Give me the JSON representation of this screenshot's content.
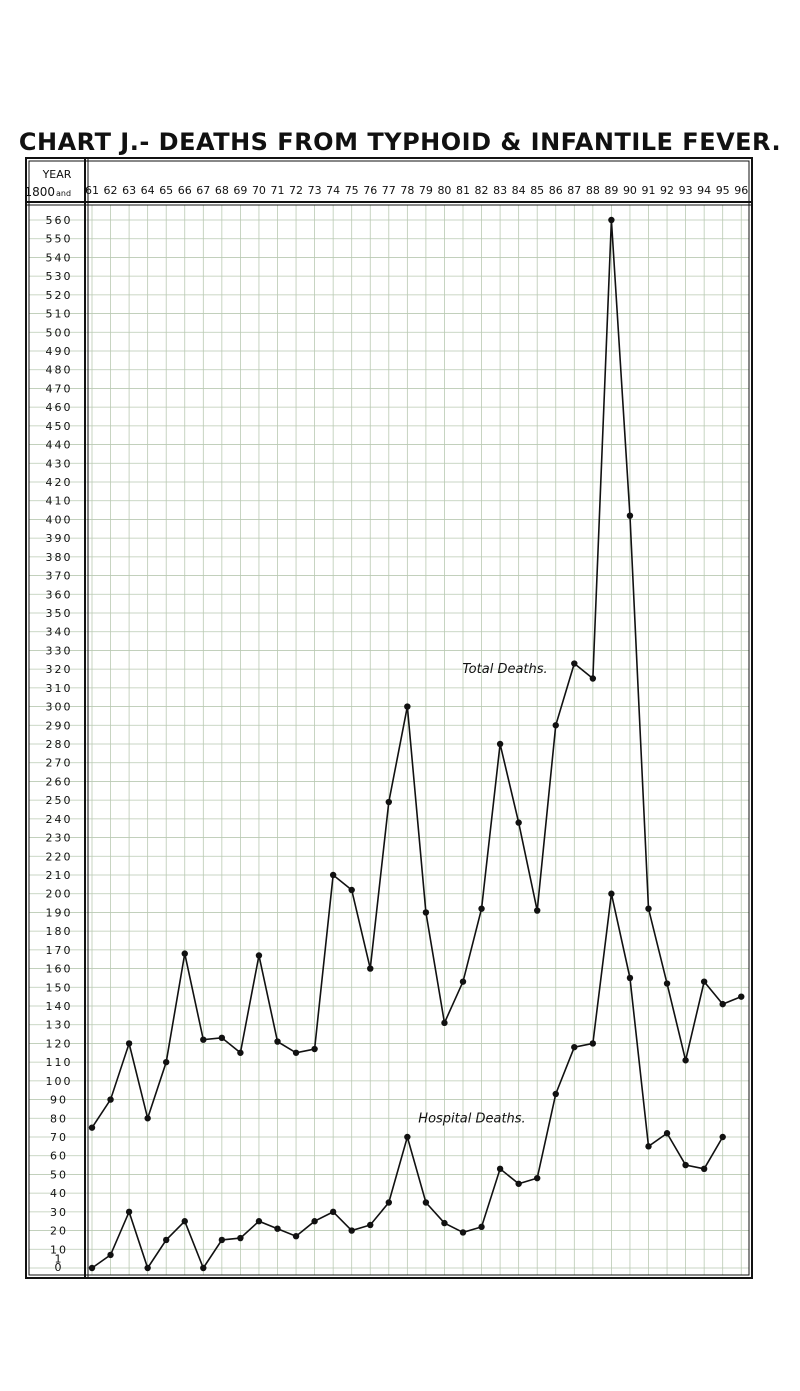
{
  "title": "CHART J.- DEATHS FROM TYPHOID & INFANTILE FEVER.",
  "corner": {
    "line1": "YEAR",
    "line2": "1800",
    "line2_suffix": "and"
  },
  "chart_data": {
    "type": "line",
    "title": "CHART J.- DEATHS FROM TYPHOID & INFANTILE FEVER.",
    "x_labels": [
      "61",
      "62",
      "63",
      "64",
      "65",
      "66",
      "67",
      "68",
      "69",
      "70",
      "71",
      "72",
      "73",
      "74",
      "75",
      "76",
      "77",
      "78",
      "79",
      "80",
      "81",
      "82",
      "83",
      "84",
      "85",
      "86",
      "87",
      "88",
      "89",
      "90",
      "91",
      "92",
      "93",
      "94",
      "95",
      "96"
    ],
    "x": [
      1861,
      1862,
      1863,
      1864,
      1865,
      1866,
      1867,
      1868,
      1869,
      1870,
      1871,
      1872,
      1873,
      1874,
      1875,
      1876,
      1877,
      1878,
      1879,
      1880,
      1881,
      1882,
      1883,
      1884,
      1885,
      1886,
      1887,
      1888,
      1889,
      1890,
      1891,
      1892,
      1893,
      1894,
      1895,
      1896
    ],
    "y_labels": [
      "560",
      "550",
      "540",
      "530",
      "520",
      "510",
      "500",
      "490",
      "480",
      "470",
      "460",
      "450",
      "440",
      "430",
      "420",
      "410",
      "400",
      "390",
      "380",
      "370",
      "360",
      "350",
      "340",
      "330",
      "320",
      "310",
      "300",
      "290",
      "280",
      "270",
      "260",
      "250",
      "240",
      "230",
      "220",
      "210",
      "200",
      "190",
      "180",
      "170",
      "160",
      "150",
      "140",
      "130",
      "120",
      "110",
      "100",
      "90",
      "80",
      "70",
      "60",
      "50",
      "40",
      "30",
      "20",
      "10",
      "1",
      "0"
    ],
    "ylim": [
      0,
      560
    ],
    "grid": true,
    "series": [
      {
        "name": "Total Deaths.",
        "x": [
          1861,
          1862,
          1863,
          1864,
          1865,
          1866,
          1867,
          1868,
          1869,
          1870,
          1871,
          1872,
          1873,
          1874,
          1875,
          1876,
          1877,
          1878,
          1879,
          1880,
          1881,
          1882,
          1883,
          1884,
          1885,
          1886,
          1887,
          1888,
          1889,
          1890,
          1891,
          1892,
          1893,
          1894,
          1895,
          1896
        ],
        "values": [
          75,
          90,
          120,
          80,
          110,
          168,
          122,
          123,
          115,
          167,
          121,
          115,
          117,
          210,
          202,
          160,
          249,
          300,
          190,
          131,
          153,
          192,
          280,
          238,
          191,
          290,
          323,
          315,
          560,
          402,
          192,
          152,
          111,
          153,
          141,
          145
        ]
      },
      {
        "name": "Hospital Deaths.",
        "x": [
          1861,
          1862,
          1863,
          1864,
          1865,
          1866,
          1867,
          1868,
          1869,
          1870,
          1871,
          1872,
          1873,
          1874,
          1875,
          1876,
          1877,
          1878,
          1879,
          1880,
          1881,
          1882,
          1883,
          1884,
          1885,
          1886,
          1887,
          1888,
          1889,
          1890,
          1891,
          1892,
          1893,
          1894,
          1895,
          1896
        ],
        "values": [
          0,
          7,
          30,
          0,
          15,
          25,
          0,
          15,
          16,
          25,
          21,
          17,
          25,
          30,
          20,
          23,
          35,
          70,
          35,
          24,
          19,
          22,
          53,
          45,
          48,
          93,
          118,
          120,
          200,
          155,
          65,
          72,
          55,
          53,
          70,
          null
        ]
      }
    ]
  }
}
